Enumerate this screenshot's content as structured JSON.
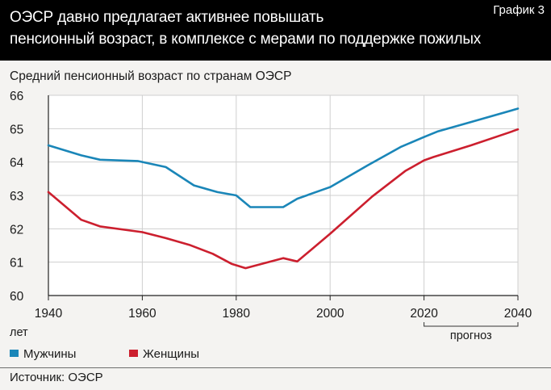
{
  "header": {
    "title_line1": "ОЭСР давно предлагает активнее повышать",
    "title_line2": "пенсионный возраст, в комплексе с мерами по поддержке пожилых",
    "graph_label": "График 3"
  },
  "source": "Источник: ОЭСР",
  "colors": {
    "men": "#1a86b8",
    "women": "#cc1f2e",
    "grid": "#cfcfcf",
    "axis": "#222222"
  },
  "chart_data": {
    "type": "line",
    "title": "Средний пенсионный возраст по странам ОЭСР",
    "ylabel": "лет",
    "xlim": [
      1940,
      2040
    ],
    "ylim": [
      60,
      66
    ],
    "xticks": [
      "1940",
      "1960",
      "1980",
      "2000",
      "2020",
      "2040"
    ],
    "yticks": [
      "60",
      "61",
      "62",
      "63",
      "64",
      "65",
      "66"
    ],
    "forecast": {
      "label": "прогноз",
      "from": 2020,
      "to": 2040
    },
    "grid": true,
    "legend_position": "bottom-left",
    "series": [
      {
        "name": "Мужчины",
        "color": "#1a86b8",
        "x": [
          1940,
          1947,
          1951,
          1959,
          1965,
          1971,
          1976,
          1980,
          1983,
          1990,
          1993,
          2000,
          2008,
          2015,
          2020,
          2023,
          2030,
          2040
        ],
        "y": [
          64.5,
          64.2,
          64.07,
          64.03,
          63.85,
          63.3,
          63.1,
          63.0,
          62.65,
          62.65,
          62.9,
          63.25,
          63.9,
          64.45,
          64.75,
          64.92,
          65.2,
          65.6
        ]
      },
      {
        "name": "Женщины",
        "color": "#cc1f2e",
        "x": [
          1940,
          1947,
          1951,
          1960,
          1965,
          1970,
          1975,
          1979,
          1982,
          1990,
          1993,
          2000,
          2009,
          2016,
          2020,
          2022,
          2030,
          2038,
          2040
        ],
        "y": [
          63.1,
          62.27,
          62.07,
          61.9,
          61.72,
          61.52,
          61.25,
          60.95,
          60.82,
          61.12,
          61.02,
          61.85,
          62.97,
          63.73,
          64.05,
          64.15,
          64.5,
          64.88,
          64.98
        ]
      }
    ]
  }
}
